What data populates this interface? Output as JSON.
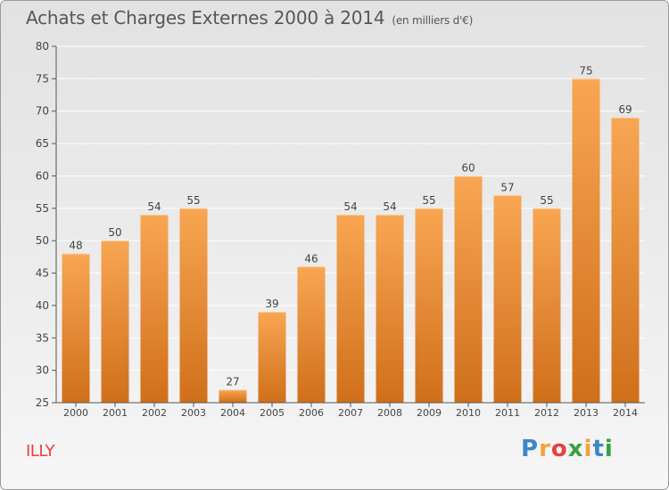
{
  "title": "Achats et Charges Externes 2000 à 2014",
  "unit": "(en milliers d'€)",
  "city": "ILLY",
  "logo": {
    "letters": [
      "P",
      "r",
      "o",
      "x",
      "i",
      "t",
      "i"
    ],
    "colors": [
      "#3b86c9",
      "#f2a33a",
      "#e8403d",
      "#3aa041",
      "#f2a33a",
      "#3b86c9",
      "#3aa041"
    ]
  },
  "colors": {
    "bar_top": "#f8a653",
    "bar_bottom": "#d06f1a",
    "axis": "#555555",
    "text": "#444444",
    "grid": "#ffffff",
    "city": "#e8403d"
  },
  "chart_data": {
    "type": "bar",
    "categories": [
      "2000",
      "2001",
      "2002",
      "2003",
      "2004",
      "2005",
      "2006",
      "2007",
      "2008",
      "2009",
      "2010",
      "2011",
      "2012",
      "2013",
      "2014"
    ],
    "values": [
      48,
      50,
      54,
      55,
      27,
      39,
      46,
      54,
      54,
      55,
      60,
      57,
      55,
      75,
      69
    ],
    "title": "Achats et Charges Externes 2000 à 2014",
    "subtitle": "(en milliers d'€)",
    "xlabel": "",
    "ylabel": "",
    "ylim": [
      25,
      80
    ],
    "yticks": [
      25,
      30,
      35,
      40,
      45,
      50,
      55,
      60,
      65,
      70,
      75,
      80
    ],
    "grid": true,
    "data_labels": true
  }
}
